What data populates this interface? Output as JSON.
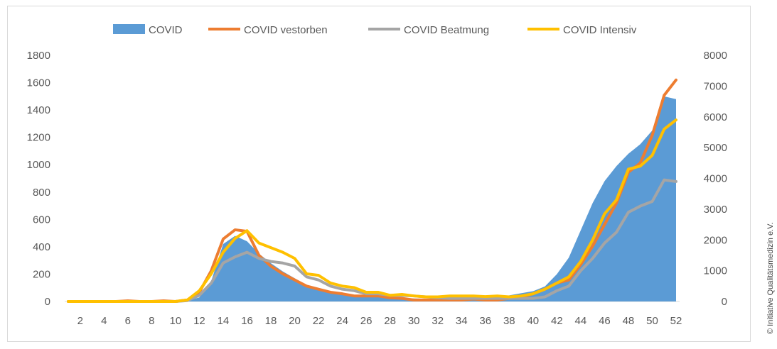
{
  "credit": "© Initiative Qualitätsmedizin e.V.",
  "colors": {
    "covid": "#5b9bd5",
    "verstorben": "#ed7d31",
    "beatmung": "#a5a5a5",
    "intensiv": "#ffc000",
    "text": "#595959"
  },
  "chart_data": {
    "type": "area",
    "title": "",
    "xlabel": "",
    "ylabel": "",
    "x": [
      1,
      2,
      3,
      4,
      5,
      6,
      7,
      8,
      9,
      10,
      11,
      12,
      13,
      14,
      15,
      16,
      17,
      18,
      19,
      20,
      21,
      22,
      23,
      24,
      25,
      26,
      27,
      28,
      29,
      30,
      31,
      32,
      33,
      34,
      35,
      36,
      37,
      38,
      39,
      40,
      41,
      42,
      43,
      44,
      45,
      46,
      47,
      48,
      49,
      50,
      51,
      52
    ],
    "x_ticks": [
      "2",
      "4",
      "6",
      "8",
      "10",
      "12",
      "14",
      "16",
      "18",
      "20",
      "22",
      "24",
      "26",
      "28",
      "30",
      "32",
      "34",
      "36",
      "38",
      "40",
      "42",
      "44",
      "46",
      "48",
      "50",
      "52"
    ],
    "y_left_ticks": [
      "0",
      "200",
      "400",
      "600",
      "800",
      "1000",
      "1200",
      "1400",
      "1600",
      "1800"
    ],
    "y_right_ticks": [
      "0",
      "1000",
      "2000",
      "3000",
      "4000",
      "5000",
      "6000",
      "7000",
      "8000"
    ],
    "ylim_left": [
      0,
      1800
    ],
    "ylim_right": [
      0,
      8000
    ],
    "legend_position": "top",
    "series": [
      {
        "name": "COVID",
        "kind": "area",
        "axis": "left",
        "color": "#5b9bd5",
        "values": [
          0,
          0,
          0,
          0,
          0,
          0,
          0,
          0,
          0,
          0,
          5,
          30,
          150,
          420,
          480,
          440,
          350,
          280,
          220,
          170,
          120,
          90,
          70,
          55,
          45,
          40,
          35,
          30,
          25,
          22,
          20,
          20,
          22,
          25,
          28,
          30,
          35,
          45,
          60,
          75,
          110,
          200,
          320,
          520,
          720,
          880,
          990,
          1080,
          1150,
          1250,
          1500,
          1480
        ]
      },
      {
        "name": "COVID vestorben",
        "kind": "line",
        "axis": "right",
        "color": "#ed7d31",
        "values": [
          0,
          0,
          0,
          0,
          0,
          20,
          0,
          0,
          20,
          0,
          50,
          300,
          1000,
          2030,
          2330,
          2280,
          1500,
          1150,
          900,
          700,
          500,
          400,
          300,
          250,
          180,
          180,
          180,
          120,
          100,
          50,
          50,
          50,
          50,
          50,
          80,
          50,
          50,
          100,
          150,
          250,
          400,
          600,
          700,
          1200,
          1800,
          2500,
          3200,
          4200,
          4500,
          5400,
          6700,
          7200
        ]
      },
      {
        "name": "COVID Beatmung",
        "kind": "line",
        "axis": "right",
        "color": "#a5a5a5",
        "values": [
          0,
          0,
          0,
          0,
          0,
          0,
          0,
          0,
          0,
          0,
          30,
          200,
          600,
          1250,
          1450,
          1600,
          1400,
          1300,
          1250,
          1150,
          800,
          700,
          500,
          400,
          350,
          250,
          250,
          200,
          200,
          180,
          150,
          120,
          100,
          100,
          100,
          100,
          100,
          100,
          100,
          100,
          150,
          350,
          500,
          1000,
          1400,
          1900,
          2250,
          2900,
          3100,
          3250,
          3950,
          3900
        ]
      },
      {
        "name": "COVID Intensiv",
        "kind": "line",
        "axis": "right",
        "color": "#ffc000",
        "values": [
          0,
          0,
          0,
          0,
          0,
          0,
          0,
          0,
          0,
          0,
          50,
          350,
          900,
          1600,
          2050,
          2300,
          1900,
          1750,
          1600,
          1400,
          900,
          850,
          600,
          500,
          450,
          300,
          300,
          200,
          230,
          180,
          150,
          150,
          180,
          180,
          180,
          160,
          180,
          150,
          180,
          250,
          400,
          600,
          800,
          1300,
          2000,
          2850,
          3300,
          4300,
          4400,
          4750,
          5600,
          5900
        ]
      }
    ]
  }
}
